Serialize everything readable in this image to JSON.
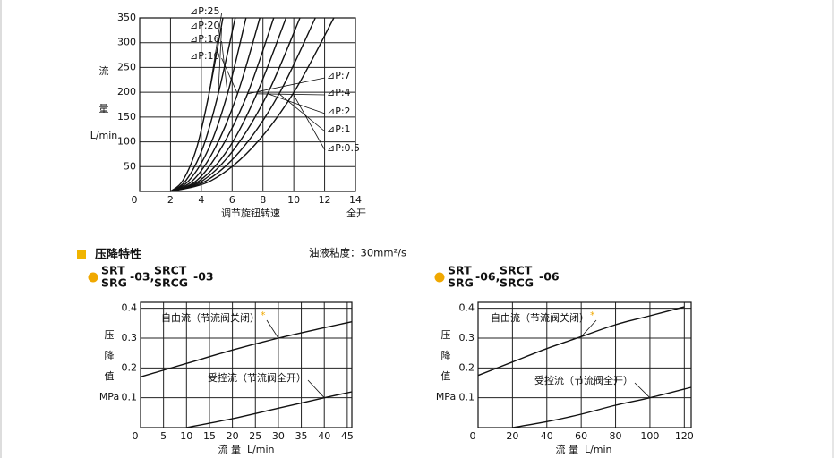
{
  "section_title": "压降特性",
  "viscosity": "油液粘度：30mm²/s",
  "chart_data": [
    {
      "type": "line",
      "xlabel": "调节旋钮转速",
      "xlabel_end": "全开",
      "ylabel": [
        "流",
        "量",
        "L/min"
      ],
      "xlim": [
        0,
        14
      ],
      "ylim": [
        0,
        350
      ],
      "xticks": [
        0,
        2,
        4,
        6,
        8,
        10,
        12,
        14
      ],
      "yticks": [
        50,
        100,
        150,
        200,
        250,
        300,
        350
      ],
      "grid": true,
      "color": "#111111",
      "series": [
        {
          "name": "⊿P:0.5",
          "x": [
            2,
            4.65,
            7.3,
            9.95,
            12.6
          ],
          "values": [
            0,
            22,
            88,
            197,
            350
          ]
        },
        {
          "name": "⊿P:1",
          "x": [
            2,
            4.35,
            6.7,
            9.05,
            11.4
          ],
          "values": [
            0,
            22,
            88,
            197,
            350
          ]
        },
        {
          "name": "⊿P:2",
          "x": [
            2,
            4.1,
            6.2,
            8.3,
            10.4
          ],
          "values": [
            0,
            22,
            88,
            197,
            350
          ]
        },
        {
          "name": "⊿P:4",
          "x": [
            2,
            3.9,
            5.8,
            7.6,
            9.5
          ],
          "values": [
            0,
            22,
            88,
            197,
            350
          ]
        },
        {
          "name": "⊿P:7",
          "x": [
            2,
            3.7,
            5.3,
            7.0,
            8.7
          ],
          "values": [
            0,
            22,
            88,
            197,
            350
          ]
        },
        {
          "name": "⊿P:10",
          "x": [
            2,
            3.45,
            4.9,
            6.35,
            7.8
          ],
          "values": [
            0,
            22,
            88,
            197,
            350
          ]
        },
        {
          "name": "⊿P:16",
          "x": [
            2,
            3.2,
            4.5,
            5.7,
            6.9
          ],
          "values": [
            0,
            22,
            88,
            197,
            350
          ]
        },
        {
          "name": "⊿P:20",
          "x": [
            2,
            3.0,
            4.1,
            5.1,
            6.2
          ],
          "values": [
            0,
            22,
            88,
            197,
            350
          ]
        },
        {
          "name": "⊿P:25",
          "x": [
            2,
            2.8,
            3.7,
            4.5,
            5.4
          ],
          "values": [
            0,
            22,
            88,
            197,
            350
          ]
        }
      ]
    },
    {
      "type": "line",
      "heading": {
        "top1": "SRT",
        "bottom1": "SRG",
        "suffix1": "-03,",
        "top2": "SRCT",
        "bottom2": "SRCG",
        "suffix2": "-03"
      },
      "xlabel": "流 量  L/min",
      "ylabel": [
        "压",
        "降",
        "值",
        "MPa"
      ],
      "xlim": [
        0,
        46
      ],
      "ylim": [
        0,
        0.42
      ],
      "xticks": [
        0,
        5,
        10,
        15,
        20,
        25,
        30,
        35,
        40,
        45
      ],
      "yticks": [
        0.1,
        0.2,
        0.3,
        0.4
      ],
      "grid": true,
      "color": "#111111",
      "series": [
        {
          "name": "自由流（节流阀关闭）",
          "mark": "*",
          "x": [
            0,
            10,
            20,
            30,
            40,
            46
          ],
          "values": [
            0.17,
            0.215,
            0.26,
            0.3,
            0.335,
            0.355
          ]
        },
        {
          "name": "受控流（节流阀全开）",
          "x": [
            10,
            20,
            30,
            40,
            46
          ],
          "values": [
            0,
            0.03,
            0.065,
            0.1,
            0.12
          ]
        }
      ]
    },
    {
      "type": "line",
      "heading": {
        "top1": "SRT",
        "bottom1": "SRG",
        "suffix1": "-06,",
        "top2": "SRCT",
        "bottom2": "SRCG",
        "suffix2": "-06"
      },
      "xlabel": "流 量  L/min",
      "ylabel": [
        "压",
        "降",
        "值",
        "MPa"
      ],
      "xlim": [
        0,
        124
      ],
      "ylim": [
        0,
        0.42
      ],
      "xticks": [
        0,
        20,
        40,
        60,
        80,
        100,
        120
      ],
      "yticks": [
        0.1,
        0.2,
        0.3,
        0.4
      ],
      "grid": true,
      "color": "#111111",
      "series": [
        {
          "name": "自由流（节流阀关闭）",
          "mark": "*",
          "x": [
            0,
            20,
            40,
            60,
            80,
            100,
            120
          ],
          "values": [
            0.175,
            0.22,
            0.265,
            0.305,
            0.345,
            0.375,
            0.405
          ]
        },
        {
          "name": "受控流（节流阀全开）",
          "x": [
            20,
            40,
            60,
            80,
            100,
            124
          ],
          "values": [
            0,
            0.02,
            0.045,
            0.075,
            0.1,
            0.135
          ]
        }
      ]
    }
  ]
}
